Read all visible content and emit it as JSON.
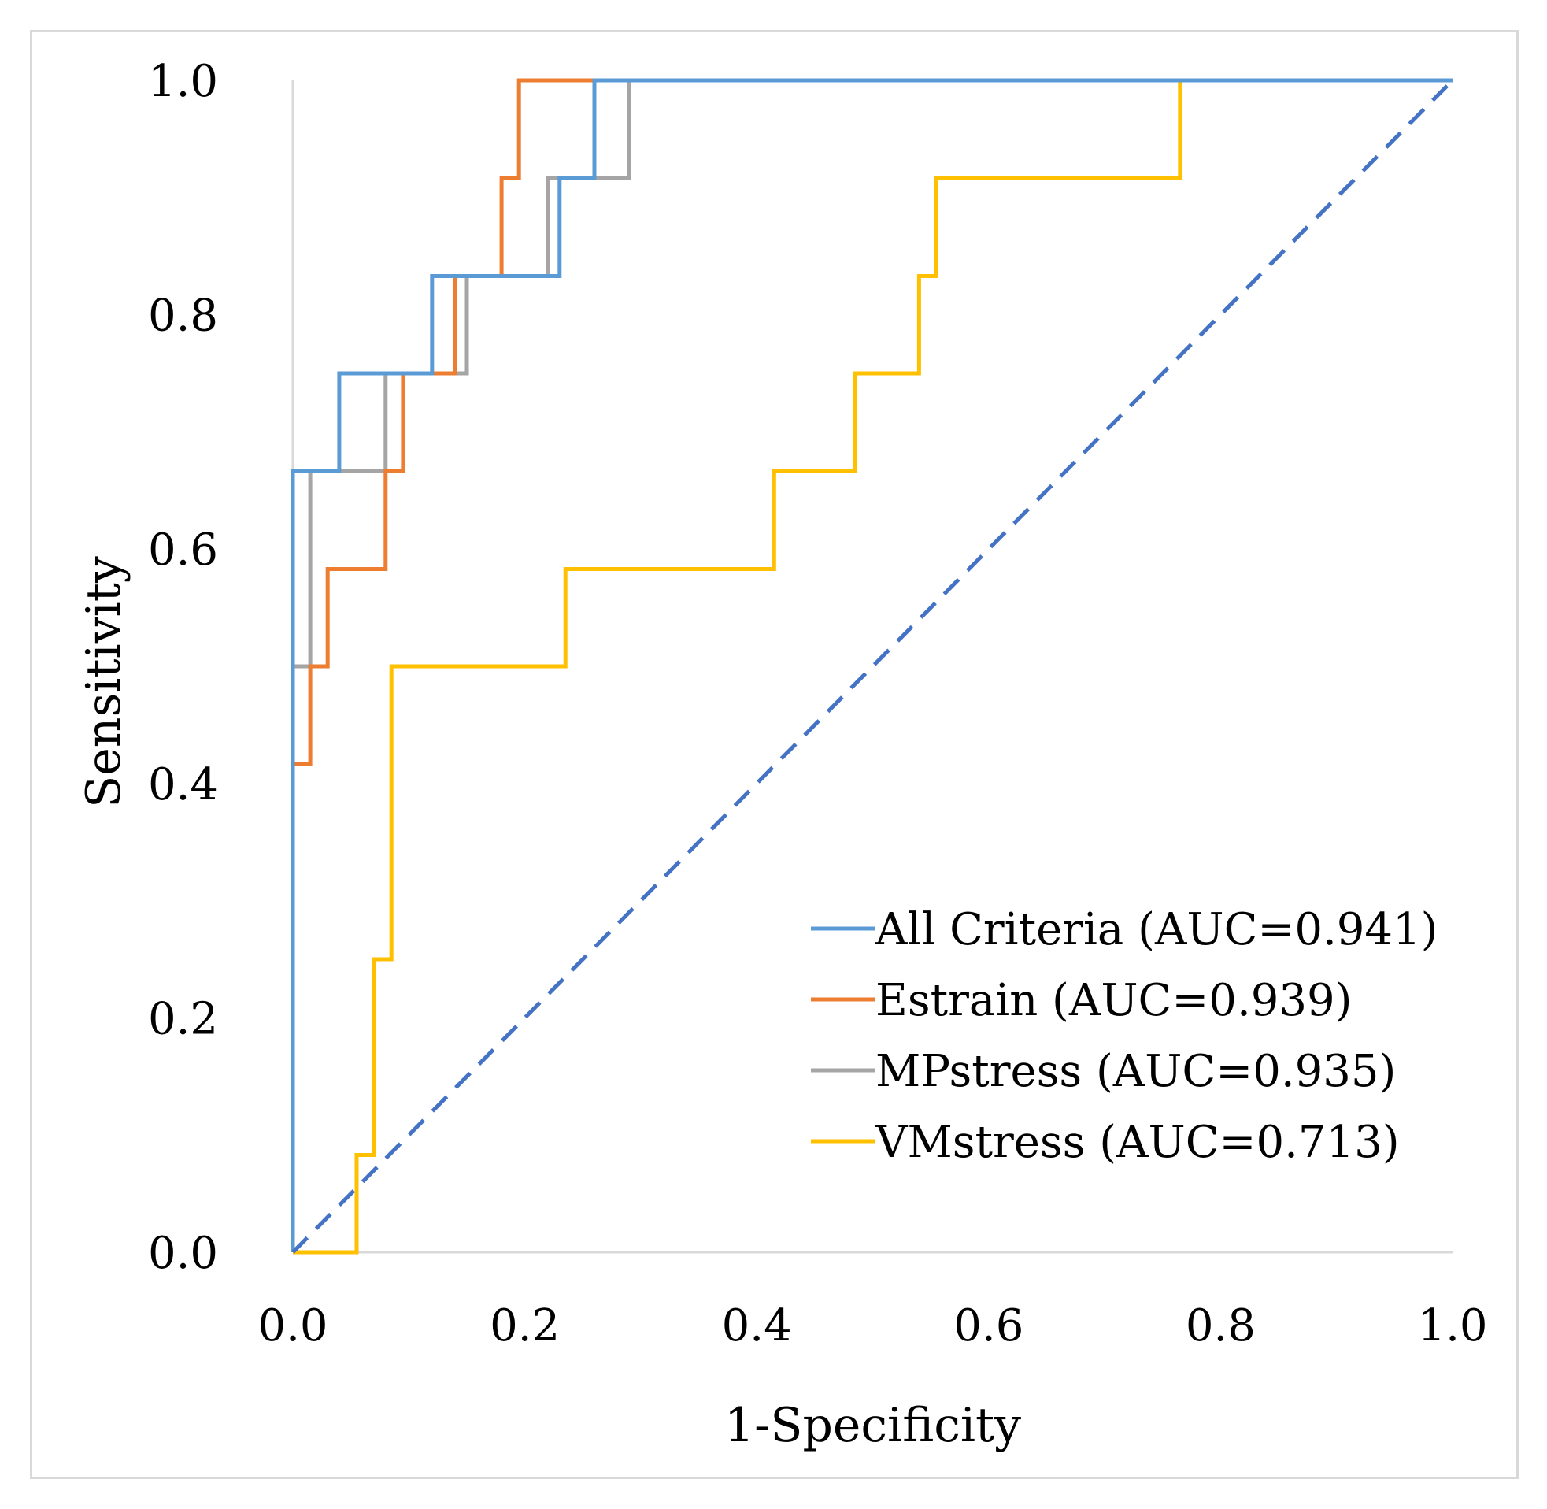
{
  "chart_data": {
    "type": "line",
    "title": "",
    "xlabel": "1-Specificity",
    "ylabel": "Sensitivity",
    "xlim": [
      0,
      1
    ],
    "ylim": [
      0,
      1
    ],
    "x_ticks": [
      "0.0",
      "0.2",
      "0.4",
      "0.6",
      "0.8",
      "1.0"
    ],
    "y_ticks": [
      "0.0",
      "0.2",
      "0.4",
      "0.6",
      "0.8",
      "1.0"
    ],
    "legend_position": "bottom-right",
    "series": [
      {
        "name": "All Criteria (AUC=0.941)",
        "color": "#5b9bd5",
        "x": [
          0,
          0,
          0.04,
          0.04,
          0.09,
          0.09,
          0.12,
          0.12,
          0.23,
          0.23,
          0.26,
          0.26,
          1.0
        ],
        "y": [
          0,
          0.667,
          0.667,
          0.75,
          0.75,
          0.75,
          0.75,
          0.833,
          0.833,
          0.917,
          0.917,
          1.0,
          1.0
        ]
      },
      {
        "name": "Estrain (AUC=0.939)",
        "color": "#ed7d31",
        "x": [
          0,
          0,
          0.015,
          0.015,
          0.03,
          0.03,
          0.08,
          0.08,
          0.095,
          0.095,
          0.14,
          0.14,
          0.18,
          0.18,
          0.195,
          0.195,
          1.0
        ],
        "y": [
          0,
          0.417,
          0.417,
          0.5,
          0.5,
          0.583,
          0.583,
          0.667,
          0.667,
          0.75,
          0.75,
          0.833,
          0.833,
          0.917,
          0.917,
          1.0,
          1.0
        ]
      },
      {
        "name": "MPstress (AUC=0.935)",
        "color": "#a5a5a5",
        "x": [
          0,
          0,
          0.015,
          0.015,
          0.08,
          0.08,
          0.15,
          0.15,
          0.22,
          0.22,
          0.29,
          0.29,
          1.0
        ],
        "y": [
          0,
          0.5,
          0.5,
          0.667,
          0.667,
          0.75,
          0.75,
          0.833,
          0.833,
          0.917,
          0.917,
          1.0,
          1.0
        ]
      },
      {
        "name": "VMstress (AUC=0.713)",
        "color": "#ffc000",
        "x": [
          0,
          0.055,
          0.055,
          0.07,
          0.07,
          0.085,
          0.085,
          0.235,
          0.235,
          0.415,
          0.415,
          0.485,
          0.485,
          0.54,
          0.54,
          0.555,
          0.555,
          0.765,
          0.765,
          1.0
        ],
        "y": [
          0,
          0,
          0.083,
          0.083,
          0.25,
          0.25,
          0.5,
          0.5,
          0.583,
          0.583,
          0.667,
          0.667,
          0.75,
          0.75,
          0.833,
          0.833,
          0.917,
          0.917,
          1.0,
          1.0
        ]
      }
    ],
    "reference_line": {
      "name": "diagonal",
      "color": "#4472c4",
      "style": "dashed",
      "x": [
        0,
        1
      ],
      "y": [
        0,
        1
      ]
    }
  }
}
